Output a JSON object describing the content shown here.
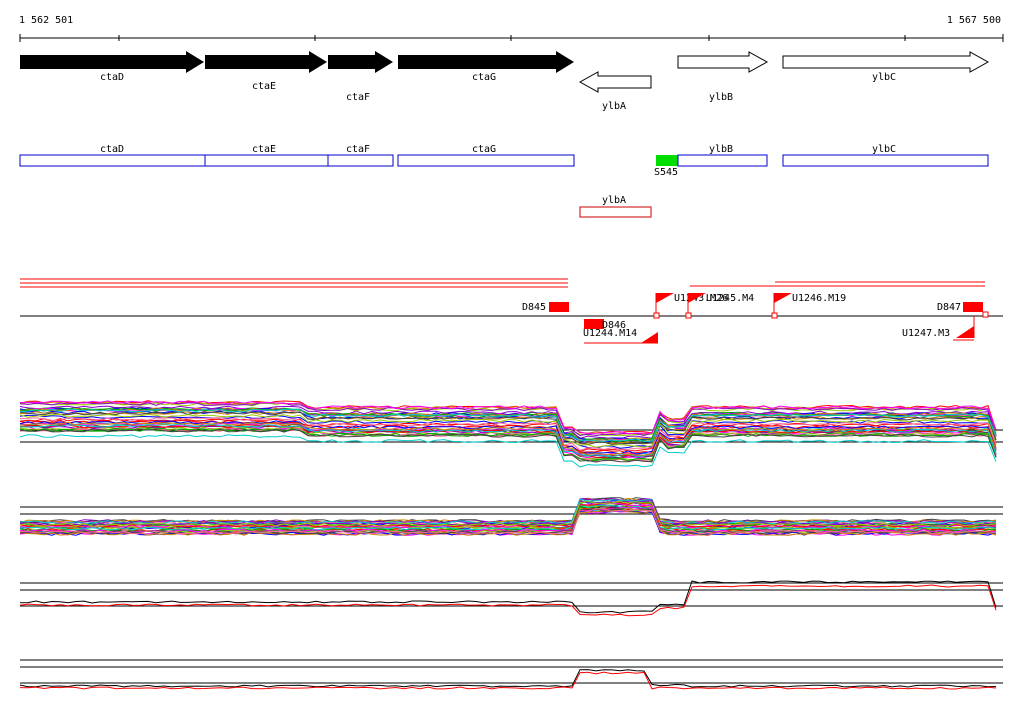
{
  "coordinates": {
    "start_label": "1 562 501",
    "end_label": "1 567 500"
  },
  "genes": [
    {
      "name": "ctaD",
      "strand": "+",
      "style": "filled"
    },
    {
      "name": "ctaE",
      "strand": "+",
      "style": "filled"
    },
    {
      "name": "ctaF",
      "strand": "+",
      "style": "filled"
    },
    {
      "name": "ctaG",
      "strand": "+",
      "style": "filled"
    },
    {
      "name": "ylbA",
      "strand": "-",
      "style": "outline"
    },
    {
      "name": "ylbB",
      "strand": "+",
      "style": "outline"
    },
    {
      "name": "ylbC",
      "strand": "+",
      "style": "outline"
    }
  ],
  "transcripts_plus": [
    {
      "name": "ctaD"
    },
    {
      "name": "ctaE"
    },
    {
      "name": "ctaF"
    },
    {
      "name": "ctaG"
    },
    {
      "name": "ylbB"
    },
    {
      "name": "ylbC"
    }
  ],
  "promoter_label": "S545",
  "transcripts_minus": [
    {
      "name": "ylbA"
    }
  ],
  "terminators_and_ups": [
    {
      "name": "D845"
    },
    {
      "name": "D846"
    },
    {
      "name": "U1244.M14"
    },
    {
      "name": "U1243.M26"
    },
    {
      "name": "U1245.M4"
    },
    {
      "name": "U1246.M19"
    },
    {
      "name": "D847"
    },
    {
      "name": "U1247.M3"
    }
  ],
  "colors": {
    "gene_fill": "#000000",
    "transcript_outline": "#0000cc",
    "minus_transcript_outline": "#cc0000",
    "promoter": "#00dd00",
    "feature": "#ff0000",
    "profile_mean": "#000000",
    "profile_alt": "#ff0000"
  }
}
